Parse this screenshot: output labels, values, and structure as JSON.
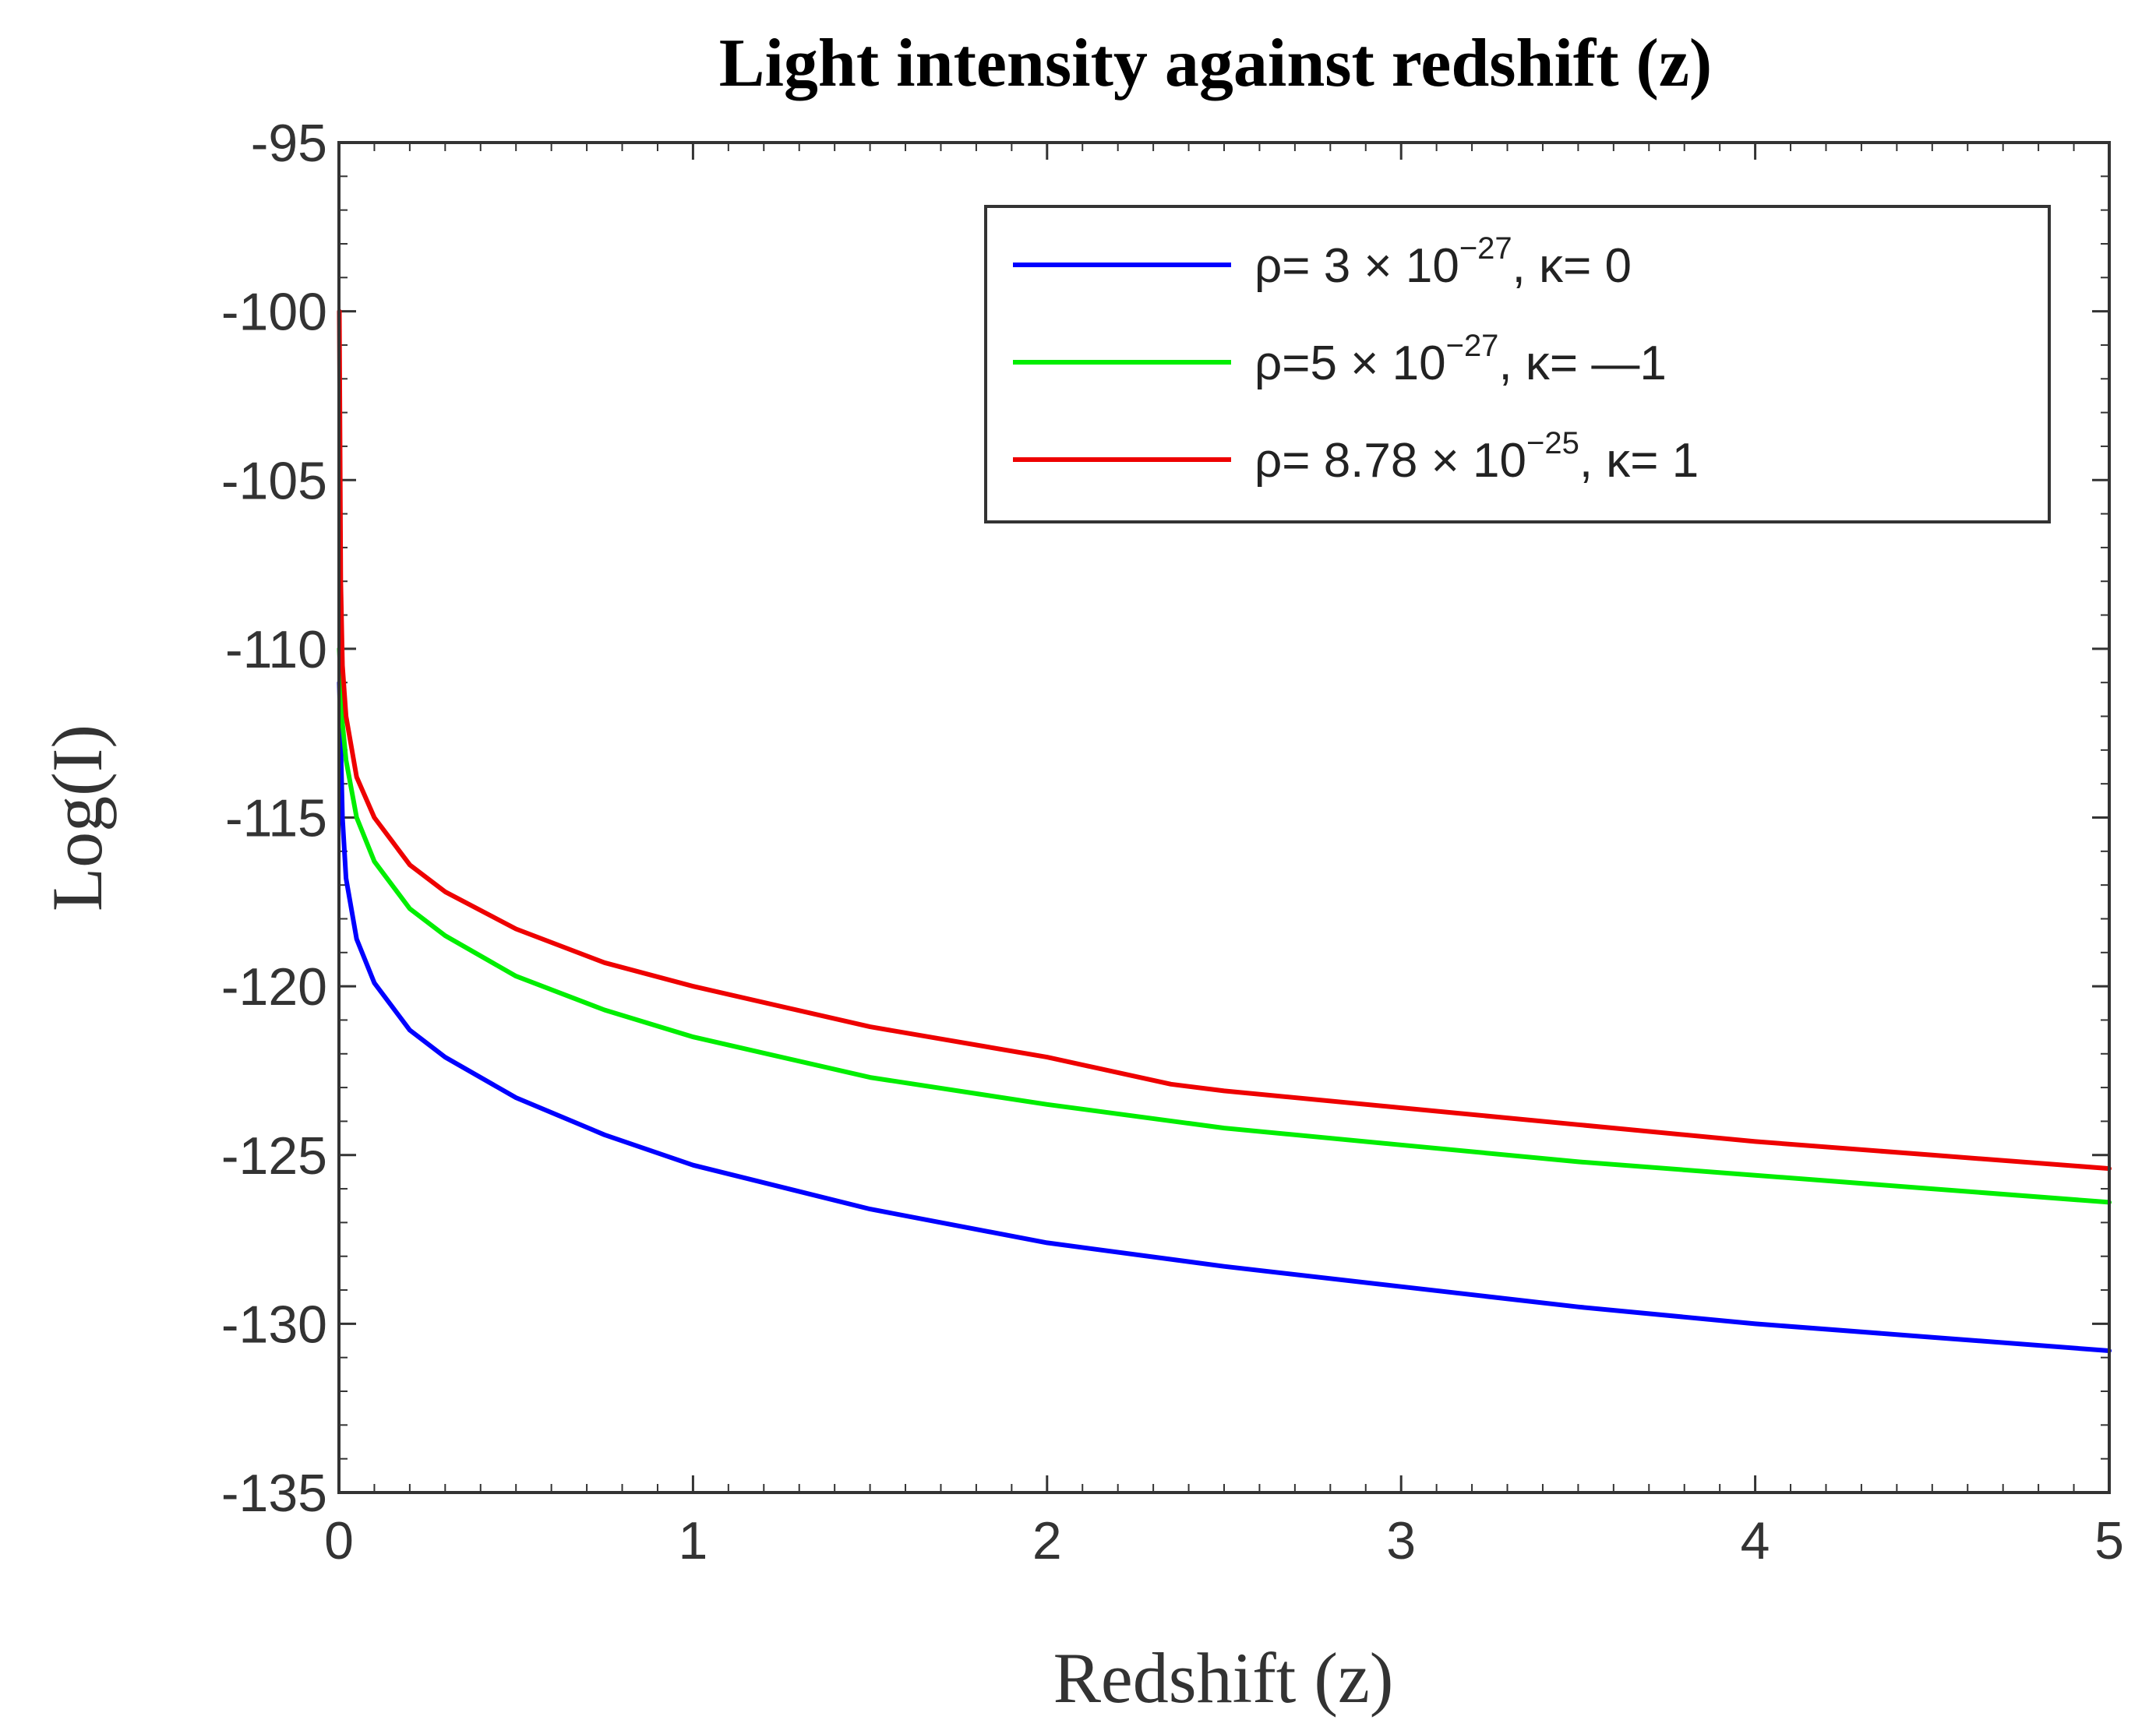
{
  "chart_data": {
    "type": "line",
    "title": "Light intensity against redshift (z)",
    "xlabel": "Redshift (z)",
    "ylabel": "Log(I)",
    "xlim": [
      0,
      5
    ],
    "ylim": [
      -135,
      -95
    ],
    "xticks": [
      0,
      1,
      2,
      3,
      4,
      5
    ],
    "yticks": [
      -95,
      -100,
      -105,
      -110,
      -115,
      -120,
      -125,
      -130,
      -135
    ],
    "grid": false,
    "legend_position": "top-right",
    "series": [
      {
        "name": "ρ= 3 × 10^−27, κ= 0",
        "label": {
          "pre": "ρ= 3 × 10",
          "exp": "−27",
          "post": ", κ= 0"
        },
        "color": "#0000ff",
        "x": [
          0.001,
          0.01,
          0.02,
          0.05,
          0.1,
          0.2,
          0.3,
          0.5,
          0.75,
          1,
          1.5,
          2,
          2.5,
          3,
          3.5,
          4,
          4.5,
          5
        ],
        "y": [
          -111,
          -115,
          -116.8,
          -118.6,
          -119.9,
          -121.3,
          -122.1,
          -123.3,
          -124.4,
          -125.3,
          -126.6,
          -127.6,
          -128.3,
          -128.9,
          -129.5,
          -130,
          -130.4,
          -130.8
        ]
      },
      {
        "name": "ρ=5 × 10^−27, κ= —1",
        "label": {
          "pre": "ρ=5 × 10",
          "exp": "−27",
          "post": ", κ= —1"
        },
        "color": "#00ee00",
        "x": [
          0.001,
          0.01,
          0.02,
          0.05,
          0.1,
          0.2,
          0.3,
          0.5,
          0.75,
          1,
          1.5,
          2,
          2.5,
          3,
          3.5,
          4,
          4.5,
          5
        ],
        "y": [
          -110,
          -112.2,
          -113.3,
          -115,
          -116.3,
          -117.7,
          -118.5,
          -119.7,
          -120.7,
          -121.5,
          -122.7,
          -123.5,
          -124.2,
          -124.7,
          -125.2,
          -125.6,
          -126,
          -126.4
        ]
      },
      {
        "name": "ρ= 8.78 × 10^−25, κ= 1",
        "label": {
          "pre": "ρ= 8.78 × 10",
          "exp": "−25",
          "post": ", κ= 1"
        },
        "color": "#ee0000",
        "x": [
          0.001,
          0.005,
          0.01,
          0.02,
          0.05,
          0.1,
          0.2,
          0.3,
          0.5,
          0.75,
          1,
          1.5,
          2,
          2.35,
          2.5,
          3,
          3.5,
          4,
          4.5,
          5
        ],
        "y": [
          -100,
          -108,
          -110.5,
          -112,
          -113.8,
          -115,
          -116.4,
          -117.2,
          -118.3,
          -119.3,
          -120,
          -121.2,
          -122.1,
          -122.9,
          -123.1,
          -123.6,
          -124.1,
          -124.6,
          -125,
          -125.4
        ]
      }
    ]
  }
}
